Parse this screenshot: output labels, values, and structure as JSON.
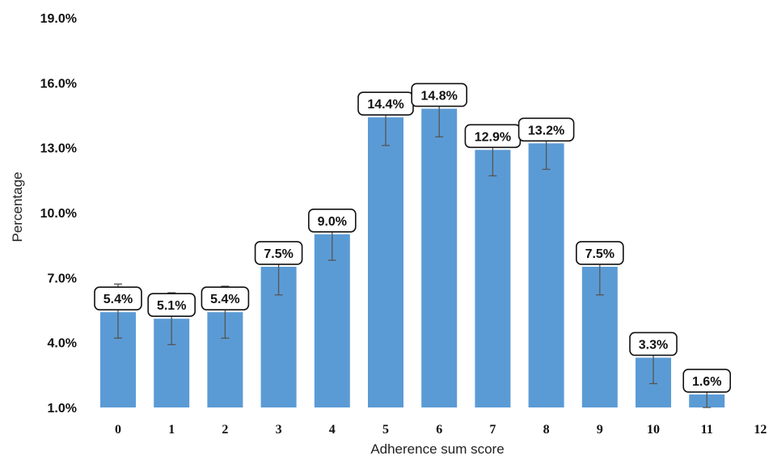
{
  "chart_data": {
    "type": "bar",
    "title": "",
    "xlabel": "Adherence sum score",
    "ylabel": "Percentage",
    "categories": [
      "0",
      "1",
      "2",
      "3",
      "4",
      "5",
      "6",
      "7",
      "8",
      "9",
      "10",
      "11",
      "12"
    ],
    "values": [
      5.4,
      5.1,
      5.4,
      7.5,
      9.0,
      14.4,
      14.8,
      12.9,
      13.2,
      7.5,
      3.3,
      1.6,
      null
    ],
    "data_labels": [
      "5.4%",
      "5.1%",
      "5.4%",
      "7.5%",
      "9.0%",
      "14.4%",
      "14.8%",
      "12.9%",
      "13.2%",
      "7.5%",
      "3.3%",
      "1.6%",
      ""
    ],
    "error_bars": [
      [
        4.2,
        6.7
      ],
      [
        3.9,
        6.3
      ],
      [
        4.2,
        6.6
      ],
      [
        6.2,
        8.1
      ],
      [
        7.8,
        9.3
      ],
      [
        13.1,
        14.6
      ],
      [
        13.5,
        15.1
      ],
      [
        11.7,
        13.1
      ],
      [
        12.0,
        13.5
      ],
      [
        6.2,
        7.8
      ],
      [
        2.1,
        3.6
      ],
      [
        1.0,
        1.9
      ],
      null
    ],
    "ylim": [
      1.0,
      19.0
    ],
    "yticks": [
      1.0,
      4.0,
      7.0,
      10.0,
      13.0,
      16.0,
      19.0
    ],
    "ytick_labels": [
      "1.0%",
      "4.0%",
      "7.0%",
      "10.0%",
      "13.0%",
      "16.0%",
      "19.0%"
    ],
    "grid": false,
    "legend": "none",
    "colors": {
      "bar": "#5b9bd5",
      "error_bar": "#555555",
      "label_border": "#111111"
    }
  }
}
